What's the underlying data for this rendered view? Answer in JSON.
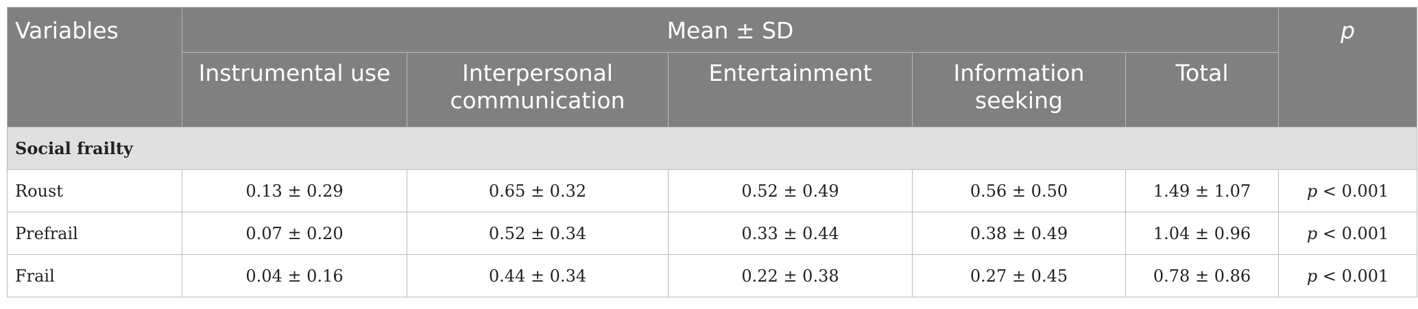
{
  "table": {
    "header": {
      "variables": "Variables",
      "group_label": "Mean ± SD",
      "p_label": "p",
      "columns": [
        "Instrumental use",
        "Interpersonal communication",
        "Entertainment",
        "Information seeking",
        "Total"
      ]
    },
    "section_label": "Social frailty",
    "rows": [
      {
        "label": "Roust",
        "values": [
          "0.13 ± 0.29",
          "0.65 ± 0.32",
          "0.52 ± 0.49",
          "0.56 ± 0.50",
          "1.49 ± 1.07"
        ],
        "p_var": "p",
        "p_value": "< 0.001"
      },
      {
        "label": "Prefrail",
        "values": [
          "0.07 ± 0.20",
          "0.52 ± 0.34",
          "0.33 ± 0.44",
          "0.38 ± 0.49",
          "1.04 ± 0.96"
        ],
        "p_var": "p",
        "p_value": "< 0.001"
      },
      {
        "label": "Frail",
        "values": [
          "0.04 ± 0.16",
          "0.44 ± 0.34",
          "0.22 ± 0.38",
          "0.27 ± 0.45",
          "0.78 ± 0.86"
        ],
        "p_var": "p",
        "p_value": "< 0.001"
      }
    ]
  },
  "colors": {
    "header_bg": "#7f807f",
    "section_bg": "#e1e0e1",
    "border": "#b9b9b9"
  }
}
